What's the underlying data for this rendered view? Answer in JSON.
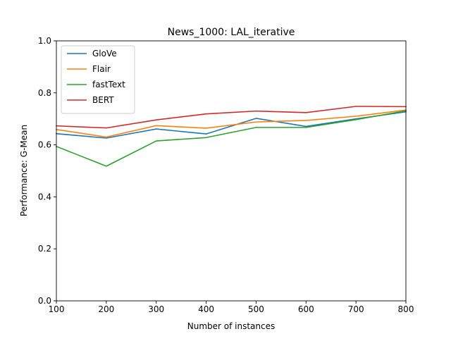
{
  "chart_data": {
    "type": "line",
    "title": "News_1000: LAL_iterative",
    "xlabel": "Number of instances",
    "ylabel": "Performance: G-Mean",
    "x": [
      100,
      200,
      300,
      400,
      500,
      600,
      700,
      800
    ],
    "xlim": [
      100,
      800
    ],
    "ylim": [
      0.0,
      1.0
    ],
    "xticks": [
      "100",
      "200",
      "300",
      "400",
      "500",
      "600",
      "700",
      "800"
    ],
    "yticks": [
      "0.0",
      "0.2",
      "0.4",
      "0.6",
      "0.8",
      "1.0"
    ],
    "grid": false,
    "legend_position": "top-left",
    "series": [
      {
        "name": "GloVe",
        "color": "#1f77b4",
        "values": [
          0.643,
          0.626,
          0.661,
          0.642,
          0.702,
          0.671,
          0.7,
          0.727
        ]
      },
      {
        "name": "Flair",
        "color": "#ff7f0e",
        "values": [
          0.659,
          0.63,
          0.674,
          0.664,
          0.688,
          0.694,
          0.71,
          0.734
        ]
      },
      {
        "name": "fastText",
        "color": "#2ca02c",
        "values": [
          0.594,
          0.518,
          0.615,
          0.628,
          0.667,
          0.667,
          0.697,
          0.731
        ]
      },
      {
        "name": "BERT",
        "color": "#d62728",
        "values": [
          0.673,
          0.665,
          0.696,
          0.719,
          0.73,
          0.724,
          0.748,
          0.747
        ]
      }
    ]
  }
}
